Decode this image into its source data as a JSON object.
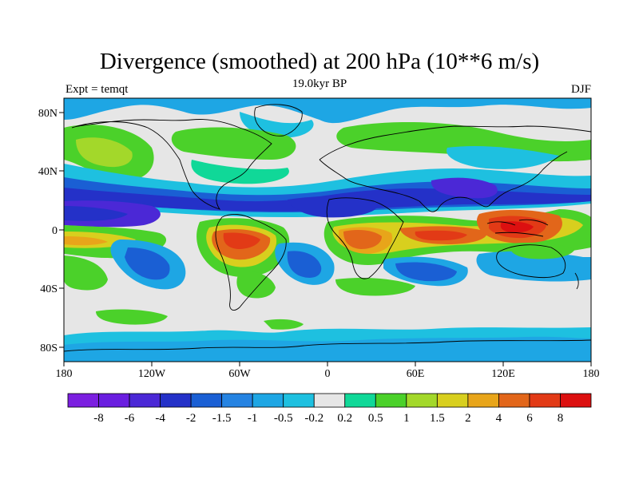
{
  "header": {
    "title": "Divergence (smoothed) at 200 hPa (10**6 m/s)",
    "left_label": "Expt = temqt",
    "center_label": "19.0kyr BP",
    "right_label": "DJF"
  },
  "axes": {
    "x_ticks": [
      "180",
      "120W",
      "60W",
      "0",
      "60E",
      "120E",
      "180"
    ],
    "y_ticks": [
      "80N",
      "40N",
      "0",
      "40S",
      "80S"
    ]
  },
  "colorbar": {
    "labels": [
      "-8",
      "-6",
      "-4",
      "-2",
      "-1.5",
      "-1",
      "-0.5",
      "-0.2",
      "0.2",
      "0.5",
      "1",
      "1.5",
      "2",
      "4",
      "6",
      "8"
    ],
    "colors": [
      "#7b1fe0",
      "#6a1ee0",
      "#4b28d6",
      "#2431c8",
      "#1a5fd4",
      "#2583e2",
      "#1ea6e4",
      "#1ec0e0",
      "#e6e6e6",
      "#10d898",
      "#4bd12a",
      "#a3d82a",
      "#d8cf1e",
      "#e8a51a",
      "#e2661a",
      "#e23a16",
      "#dc1010"
    ]
  },
  "colors": {
    "ocean_neutral": "#e6e6e6",
    "coast": "#000000",
    "frame": "#000000"
  }
}
